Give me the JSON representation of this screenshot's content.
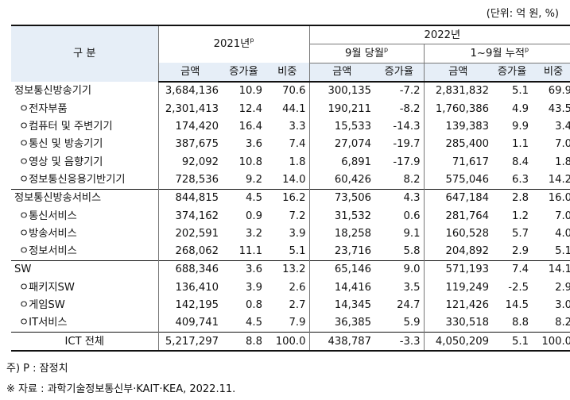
{
  "unit_note": "(단위: 억 원, %)",
  "header": {
    "category": "구   분",
    "year2021": "2021년",
    "year2021_sup": "p",
    "year2022": "2022년",
    "sep": "9월 당월",
    "sep_sup": "p",
    "cum": "1~9월 누적",
    "cum_sup": "p",
    "col_amount": "금액",
    "col_growth": "증가율",
    "col_share": "비중"
  },
  "rows": [
    {
      "label": "정보통신방송기기",
      "sub": false,
      "v": [
        "3,684,136",
        "10.9",
        "70.6",
        "300,135",
        "-7.2",
        "2,831,832",
        "5.1",
        "69.9"
      ]
    },
    {
      "label": "ㅇ전자부품",
      "sub": true,
      "v": [
        "2,301,413",
        "12.4",
        "44.1",
        "190,211",
        "-8.2",
        "1,760,386",
        "4.9",
        "43.5"
      ]
    },
    {
      "label": "ㅇ컴퓨터 및 주변기기",
      "sub": true,
      "v": [
        "174,420",
        "16.4",
        "3.3",
        "15,533",
        "-14.3",
        "139,383",
        "9.9",
        "3.4"
      ]
    },
    {
      "label": "ㅇ통신 및 방송기기",
      "sub": true,
      "v": [
        "387,675",
        "3.6",
        "7.4",
        "27,074",
        "-19.7",
        "285,400",
        "1.1",
        "7.0"
      ]
    },
    {
      "label": "ㅇ영상 및 음향기기",
      "sub": true,
      "v": [
        "92,092",
        "10.8",
        "1.8",
        "6,891",
        "-17.9",
        "71,617",
        "8.4",
        "1.8"
      ]
    },
    {
      "label": "ㅇ정보통신응용기반기기",
      "sub": true,
      "v": [
        "728,536",
        "9.2",
        "14.0",
        "60,426",
        "8.2",
        "575,046",
        "6.3",
        "14.2"
      ]
    },
    {
      "label": "정보통신방송서비스",
      "sub": false,
      "v": [
        "844,815",
        "4.5",
        "16.2",
        "73,506",
        "4.3",
        "647,184",
        "2.8",
        "16.0"
      ]
    },
    {
      "label": "ㅇ통신서비스",
      "sub": true,
      "v": [
        "374,162",
        "0.9",
        "7.2",
        "31,532",
        "0.6",
        "281,764",
        "1.2",
        "7.0"
      ]
    },
    {
      "label": "ㅇ방송서비스",
      "sub": true,
      "v": [
        "202,591",
        "3.2",
        "3.9",
        "18,258",
        "9.1",
        "160,528",
        "5.7",
        "4.0"
      ]
    },
    {
      "label": "ㅇ정보서비스",
      "sub": true,
      "v": [
        "268,062",
        "11.1",
        "5.1",
        "23,716",
        "5.8",
        "204,892",
        "2.9",
        "5.1"
      ]
    },
    {
      "label": "SW",
      "sub": false,
      "v": [
        "688,346",
        "3.6",
        "13.2",
        "65,146",
        "9.0",
        "571,193",
        "7.4",
        "14.1"
      ]
    },
    {
      "label": "ㅇ패키지SW",
      "sub": true,
      "v": [
        "136,410",
        "3.9",
        "2.6",
        "14,416",
        "3.5",
        "119,249",
        "-2.5",
        "2.9"
      ]
    },
    {
      "label": "ㅇ게임SW",
      "sub": true,
      "v": [
        "142,195",
        "0.8",
        "2.7",
        "14,345",
        "24.7",
        "121,426",
        "14.5",
        "3.0"
      ]
    },
    {
      "label": "ㅇIT서비스",
      "sub": true,
      "v": [
        "409,741",
        "4.5",
        "7.9",
        "36,385",
        "5.9",
        "330,518",
        "8.8",
        "8.2"
      ]
    },
    {
      "label": "ICT 전체",
      "sub": false,
      "total": true,
      "v": [
        "5,217,297",
        "8.8",
        "100.0",
        "438,787",
        "-3.3",
        "4,050,209",
        "5.1",
        "100.0"
      ]
    }
  ],
  "notes": {
    "note1": "주) P : 잠정치",
    "note2": "※ 자료 : 과학기술정보통신부·KAIT·KEA, 2022.11."
  }
}
